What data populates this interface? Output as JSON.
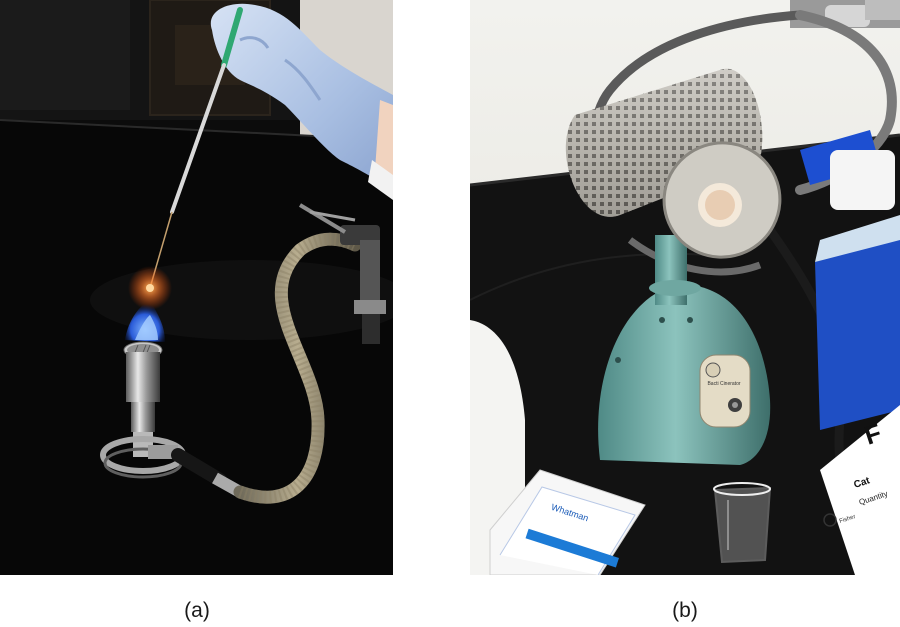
{
  "panels": [
    {
      "caption": "(a)",
      "subject": "bunsen-burner-with-inoculating-loop"
    },
    {
      "caption": "(b)",
      "subject": "bacti-cinerator-loop-sterilizer",
      "lettering": [
        "Bacti Cinerator",
        "Whatman",
        "Cat",
        "Quantity",
        "Fisher"
      ]
    }
  ]
}
